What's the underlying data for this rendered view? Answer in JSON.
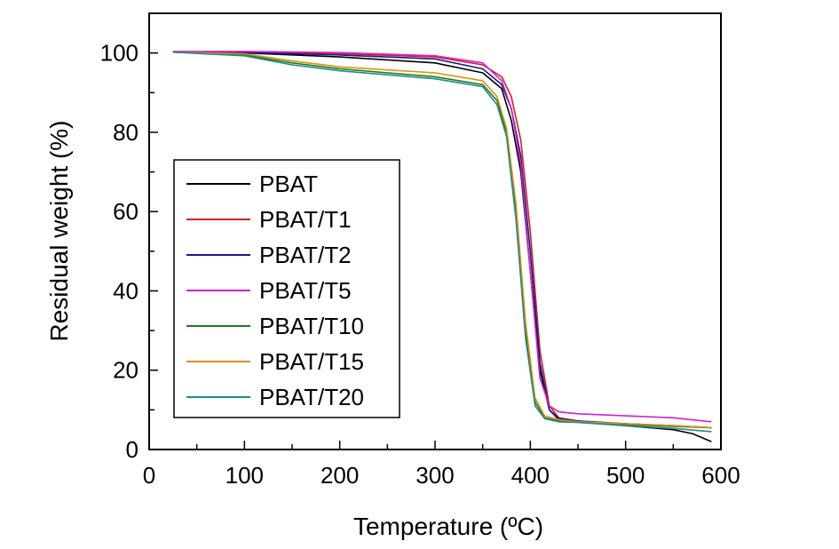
{
  "chart_data": {
    "type": "line",
    "title": "",
    "xlabel": "Temperature (ºC)",
    "ylabel": "Residual weight (%)",
    "xlim": [
      0,
      600
    ],
    "ylim": [
      0,
      110
    ],
    "xticks": [
      "0",
      "100",
      "200",
      "300",
      "400",
      "500",
      "600"
    ],
    "yticks": [
      "0",
      "20",
      "40",
      "60",
      "80",
      "100"
    ],
    "grid": false,
    "legend_position": "left",
    "series": [
      {
        "name": "PBAT",
        "color": "#000000",
        "x": [
          25,
          100,
          200,
          300,
          350,
          370,
          380,
          390,
          400,
          410,
          420,
          430,
          450,
          500,
          550,
          570,
          590
        ],
        "y": [
          100.2,
          100,
          99,
          97.5,
          95,
          91,
          83,
          70,
          45,
          20,
          10,
          7.5,
          7,
          6,
          5,
          4,
          2
        ]
      },
      {
        "name": "PBAT/T1",
        "color": "#d42020",
        "x": [
          25,
          100,
          200,
          300,
          350,
          370,
          380,
          390,
          400,
          410,
          420,
          430,
          450,
          500,
          550,
          590
        ],
        "y": [
          100.3,
          100.2,
          99.8,
          99,
          97,
          94,
          89,
          78,
          55,
          25,
          11,
          8,
          7.2,
          6.5,
          6,
          5.5
        ]
      },
      {
        "name": "PBAT/T2",
        "color": "#1a1a8c",
        "x": [
          25,
          100,
          200,
          300,
          350,
          370,
          380,
          390,
          400,
          410,
          420,
          430,
          450,
          500,
          550,
          590
        ],
        "y": [
          100.3,
          100.1,
          99.5,
          98.5,
          96,
          92,
          86,
          74,
          50,
          22,
          10,
          7.8,
          7.2,
          6.5,
          6,
          5.5
        ]
      },
      {
        "name": "PBAT/T5",
        "color": "#d020d0",
        "x": [
          25,
          100,
          200,
          300,
          350,
          370,
          380,
          390,
          400,
          410,
          420,
          430,
          450,
          500,
          550,
          590
        ],
        "y": [
          100.4,
          100.4,
          100.1,
          99.3,
          97.5,
          93,
          86,
          72,
          45,
          18,
          11,
          9.5,
          9,
          8.5,
          8,
          7
        ]
      },
      {
        "name": "PBAT/T10",
        "color": "#1f7a1f",
        "x": [
          25,
          100,
          150,
          200,
          300,
          350,
          365,
          375,
          385,
          395,
          405,
          415,
          430,
          450,
          500,
          550,
          590
        ],
        "y": [
          100.2,
          99.5,
          97.5,
          96,
          94,
          92,
          88,
          80,
          60,
          30,
          12,
          8,
          7.2,
          7,
          6.3,
          5.8,
          5.5
        ]
      },
      {
        "name": "PBAT/T15",
        "color": "#e0900a",
        "x": [
          25,
          100,
          150,
          200,
          300,
          350,
          365,
          375,
          385,
          395,
          405,
          415,
          430,
          450,
          500,
          550,
          590
        ],
        "y": [
          100.2,
          99.8,
          98,
          96.5,
          95,
          93,
          89,
          81,
          62,
          32,
          13,
          8.5,
          7.5,
          7,
          6.5,
          6,
          5.5
        ]
      },
      {
        "name": "PBAT/T20",
        "color": "#1f8a8a",
        "x": [
          25,
          100,
          150,
          200,
          300,
          350,
          365,
          375,
          385,
          395,
          405,
          415,
          430,
          450,
          500,
          550,
          590
        ],
        "y": [
          100.2,
          99.3,
          97,
          95.5,
          93.5,
          91.5,
          87,
          79,
          58,
          28,
          11,
          7.8,
          7,
          6.8,
          6,
          5.3,
          4.5
        ]
      }
    ]
  }
}
